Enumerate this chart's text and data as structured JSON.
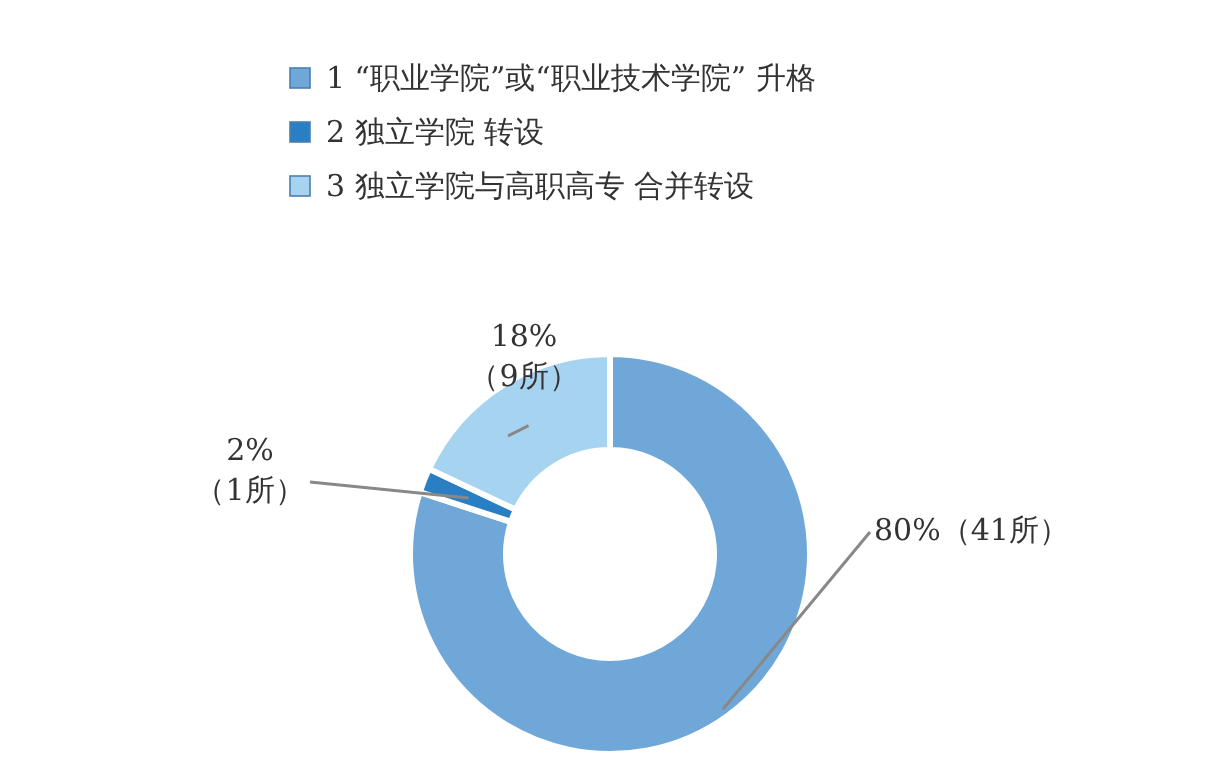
{
  "chart_data": {
    "type": "donut",
    "categories": [
      "1 “职业学院”或“职业技术学院” 升格",
      "2 独立学院 转设",
      "3 独立学院与高职高专 合并转设"
    ],
    "values": [
      80,
      2,
      18
    ],
    "colors": [
      "#70a7d9",
      "#2a7fc4",
      "#a6d3f0"
    ],
    "value_labels": [
      "80%（41所）",
      "2%\n（1所）",
      "18%\n（9所）"
    ],
    "legend": "top"
  }
}
